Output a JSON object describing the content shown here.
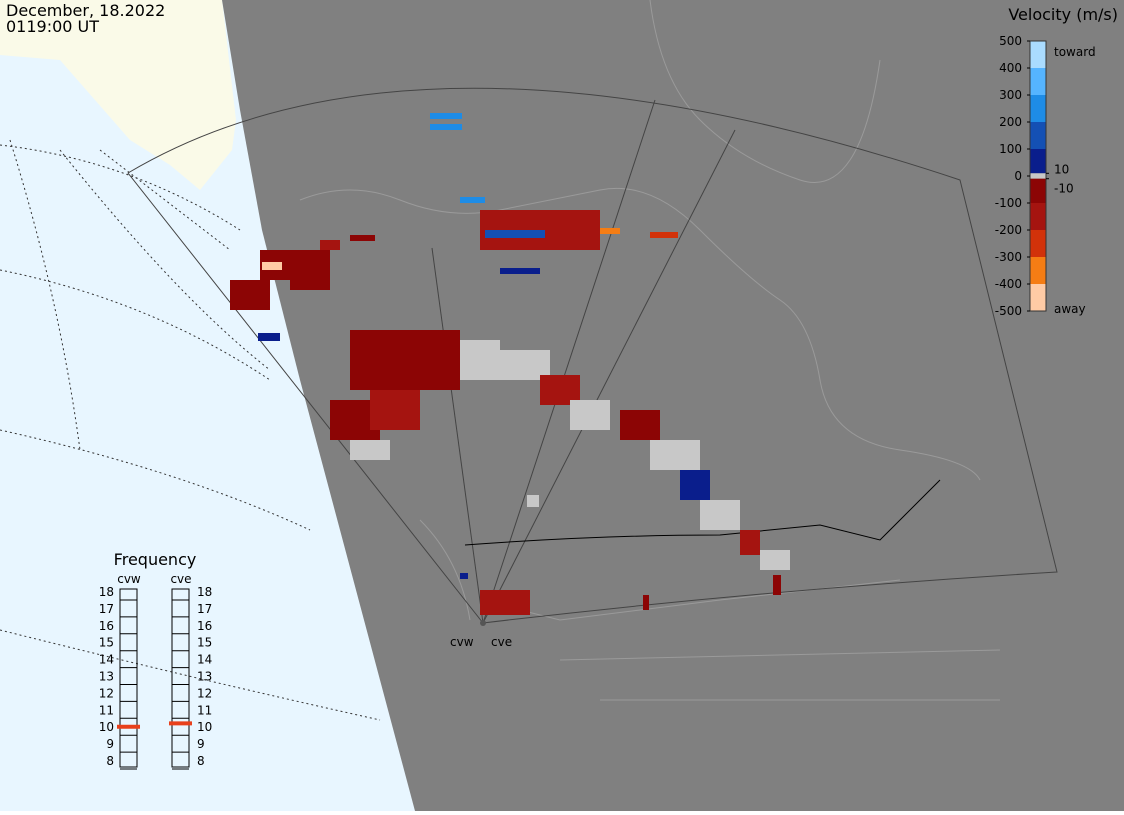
{
  "header": {
    "date": "December, 18.2022",
    "time": "0119:00 UT"
  },
  "colorbar": {
    "title": "Velocity (m/s)",
    "ticks": [
      500,
      400,
      300,
      200,
      100,
      0,
      -100,
      -200,
      -300,
      -400,
      -500
    ],
    "inner_ticks": [
      10,
      -10
    ],
    "top_label": "toward",
    "bottom_label": "away",
    "colors": [
      "#aadcff",
      "#55b4ff",
      "#1e8ce6",
      "#1450b4",
      "#0a1e8c",
      "#c8c8c8",
      "#8c0505",
      "#a51410",
      "#d2320a",
      "#f57d14",
      "#ffcba5"
    ]
  },
  "frequency": {
    "title": "Frequency",
    "ticks": [
      18,
      17,
      16,
      15,
      14,
      13,
      12,
      11,
      10,
      9,
      8
    ],
    "indicator_color": "#e8401c",
    "radars": [
      {
        "name": "cvw",
        "value": 10.5
      },
      {
        "name": "cve",
        "value": 10.7
      }
    ]
  },
  "map": {
    "stations": [
      "cvw",
      "cve"
    ]
  }
}
